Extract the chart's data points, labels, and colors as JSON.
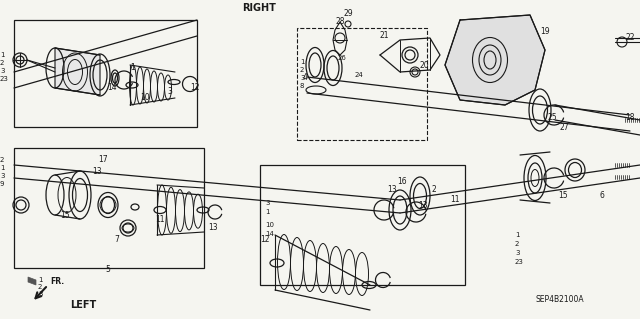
{
  "bg_color": "#f5f5f0",
  "line_color": "#1a1a1a",
  "figsize": [
    6.4,
    3.19
  ],
  "dpi": 100,
  "watermark": "SEP4B2100A",
  "right_label": "RIGHT",
  "left_label": "LEFT",
  "fr_label": "FR."
}
